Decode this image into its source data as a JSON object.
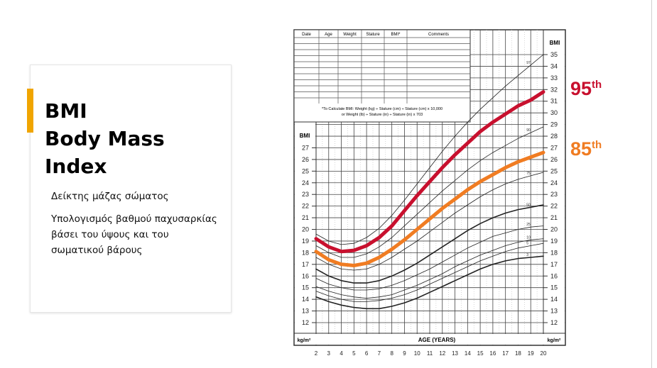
{
  "slide": {
    "title_lines": [
      "BMI",
      "Body Mass",
      "Index"
    ],
    "subtitle": "Δείκτης μάζας σώματος",
    "description": "Υπολογισμός βαθμού παχυσαρκίας βάσει του ύψους και του σωματικού βάρους",
    "accent_color": "#f0a500"
  },
  "callouts": {
    "p95": {
      "num": "95",
      "suffix": "th",
      "color": "#c8102e"
    },
    "p85": {
      "num": "85",
      "suffix": "th",
      "color": "#f07c22"
    }
  },
  "chart_data": {
    "type": "line",
    "xlabel": "AGE (YEARS)",
    "ylabel": "BMI",
    "unit_label": "kg/m²",
    "x": [
      2,
      3,
      4,
      5,
      6,
      7,
      8,
      9,
      10,
      11,
      12,
      13,
      14,
      15,
      16,
      17,
      18,
      19,
      20
    ],
    "xlim": [
      2,
      20
    ],
    "ylim": [
      12,
      35
    ],
    "left_axis_range": [
      12,
      27
    ],
    "grid": true,
    "table": {
      "headers": [
        "Date",
        "Age",
        "Weight",
        "Stature",
        "BMI*",
        "Comments"
      ],
      "formula_line1": "*To Calculate BMI: Weight (kg) ÷ Stature (cm) ÷ Stature (cm) x 10,000",
      "formula_line2": "or Weight (lb) ÷ Stature (in) ÷ Stature (in) x 703"
    },
    "series": [
      {
        "name": "97",
        "style": "thin",
        "values": [
          19.6,
          19.0,
          18.7,
          18.8,
          19.3,
          20.1,
          21.2,
          22.5,
          23.9,
          25.3,
          26.7,
          28.0,
          29.2,
          30.3,
          31.3,
          32.3,
          33.2,
          34.1,
          35.0
        ]
      },
      {
        "name": "95",
        "style": "highlight",
        "color": "#c8102e",
        "values": [
          19.2,
          18.5,
          18.1,
          18.2,
          18.6,
          19.3,
          20.3,
          21.6,
          22.9,
          24.1,
          25.3,
          26.4,
          27.4,
          28.4,
          29.2,
          29.9,
          30.6,
          31.1,
          31.8
        ]
      },
      {
        "name": "90",
        "style": "thin",
        "values": [
          18.6,
          18.0,
          17.6,
          17.6,
          17.9,
          18.5,
          19.3,
          20.3,
          21.3,
          22.3,
          23.3,
          24.2,
          25.1,
          25.9,
          26.6,
          27.2,
          27.8,
          28.3,
          28.8
        ]
      },
      {
        "name": "85",
        "style": "highlight",
        "color": "#f07c22",
        "values": [
          18.1,
          17.4,
          17.0,
          16.9,
          17.1,
          17.6,
          18.3,
          19.1,
          20.0,
          20.9,
          21.8,
          22.6,
          23.4,
          24.1,
          24.7,
          25.3,
          25.8,
          26.2,
          26.6
        ]
      },
      {
        "name": "75",
        "style": "thin",
        "values": [
          17.6,
          17.0,
          16.6,
          16.5,
          16.6,
          17.0,
          17.6,
          18.3,
          19.0,
          19.8,
          20.6,
          21.4,
          22.1,
          22.8,
          23.4,
          23.9,
          24.3,
          24.6,
          24.9
        ]
      },
      {
        "name": "50",
        "style": "bold",
        "values": [
          16.6,
          16.0,
          15.6,
          15.4,
          15.4,
          15.6,
          16.0,
          16.5,
          17.1,
          17.8,
          18.5,
          19.2,
          19.9,
          20.5,
          21.0,
          21.4,
          21.7,
          21.9,
          22.1
        ]
      },
      {
        "name": "25",
        "style": "thin",
        "values": [
          15.8,
          15.3,
          15.0,
          14.8,
          14.8,
          14.9,
          15.2,
          15.6,
          16.1,
          16.6,
          17.2,
          17.8,
          18.4,
          18.9,
          19.4,
          19.7,
          20.0,
          20.2,
          20.3
        ]
      },
      {
        "name": "10",
        "style": "thin",
        "values": [
          15.1,
          14.7,
          14.4,
          14.2,
          14.1,
          14.2,
          14.4,
          14.8,
          15.2,
          15.7,
          16.2,
          16.8,
          17.3,
          17.8,
          18.2,
          18.6,
          18.9,
          19.1,
          19.2
        ]
      },
      {
        "name": "5",
        "style": "thin",
        "values": [
          14.7,
          14.3,
          14.0,
          13.8,
          13.8,
          13.9,
          14.1,
          14.4,
          14.8,
          15.3,
          15.8,
          16.3,
          16.8,
          17.3,
          17.7,
          18.1,
          18.4,
          18.6,
          18.8
        ]
      },
      {
        "name": "3",
        "style": "bold",
        "values": [
          14.2,
          13.8,
          13.5,
          13.3,
          13.2,
          13.2,
          13.4,
          13.7,
          14.1,
          14.6,
          15.1,
          15.6,
          16.1,
          16.6,
          17.0,
          17.3,
          17.5,
          17.6,
          17.7
        ]
      }
    ]
  }
}
